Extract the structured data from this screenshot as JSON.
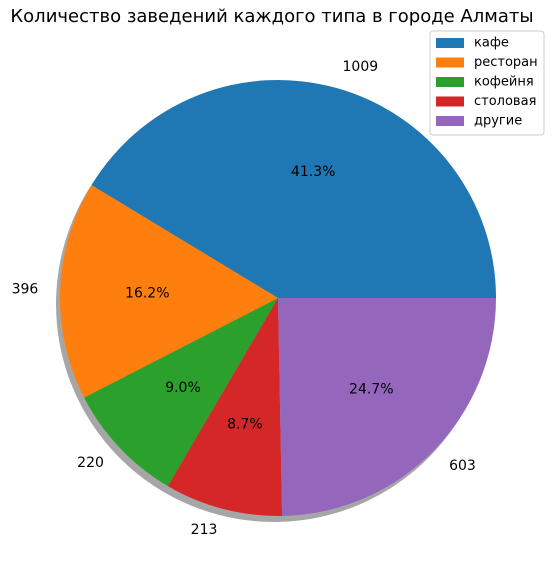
{
  "chart_data": {
    "type": "pie",
    "title": "Количество заведений каждого типа в городе Алматы",
    "categories": [
      "кафе",
      "ресторан",
      "кофейня",
      "столовая",
      "другие"
    ],
    "values": [
      1009,
      396,
      220,
      213,
      603
    ],
    "value_labels": [
      "1009",
      "396",
      "220",
      "213",
      "603"
    ],
    "percent_labels": [
      "41.3%",
      "16.2%",
      "9.0%",
      "8.7%",
      "24.7%"
    ],
    "colors": [
      "#1f77b4",
      "#ff7f0e",
      "#2ca02c",
      "#d62728",
      "#9467bd"
    ],
    "start_angle_deg": 0,
    "direction": "counterclockwise",
    "shadow": true,
    "legend_position": "top-right"
  }
}
